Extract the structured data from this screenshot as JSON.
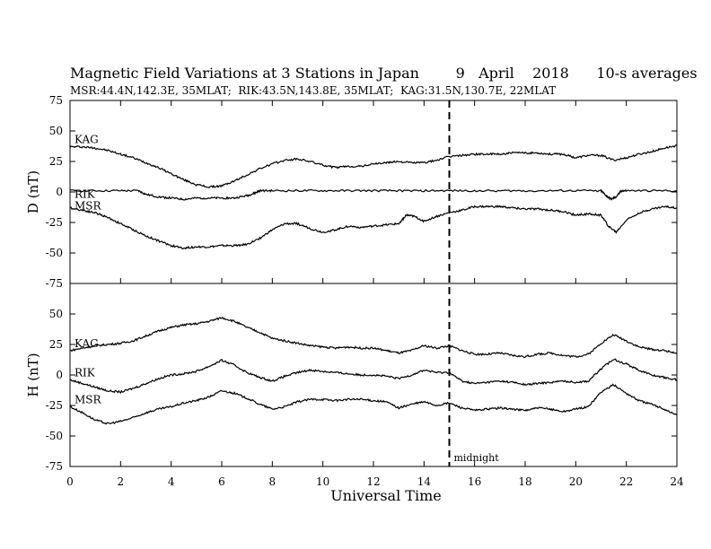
{
  "header": {
    "title": "Magnetic Field Variations at 3 Stations in Japan        9   April    2018      10-s averages",
    "subtitle": "MSR:44.4N,142.3E, 35MLAT;  RIK:43.5N,143.8E, 35MLAT;  KAG:31.5N,130.7E, 22MLAT"
  },
  "chart_data": [
    {
      "type": "line",
      "ylabel": "D (nT)",
      "xlabel": "",
      "xlim": [
        0,
        24
      ],
      "ylim": [
        -75,
        75
      ],
      "yticks": [
        75,
        50,
        25,
        0,
        -25,
        -50,
        -75
      ],
      "grid": false,
      "series": [
        {
          "name": "KAG",
          "x": [
            0,
            0.5,
            1,
            1.5,
            2,
            2.5,
            3,
            3.5,
            4,
            4.5,
            5,
            5.5,
            6,
            6.5,
            7,
            7.5,
            8,
            8.5,
            9,
            9.5,
            10,
            10.5,
            11,
            11.5,
            12,
            12.5,
            13,
            13.5,
            14,
            14.5,
            15,
            15.5,
            16,
            16.5,
            17,
            17.5,
            18,
            18.5,
            19,
            19.5,
            20,
            20.5,
            21,
            21.5,
            22,
            22.5,
            23,
            23.5,
            24
          ],
          "values": [
            37,
            37,
            36,
            34,
            31,
            28,
            24,
            20,
            15,
            10,
            6,
            4,
            5,
            9,
            14,
            19,
            23,
            26,
            27,
            25,
            22,
            20,
            21,
            21,
            23,
            24,
            25,
            24,
            24,
            26,
            29,
            30,
            31,
            31,
            31,
            32,
            32,
            32,
            31,
            31,
            28,
            30,
            30,
            26,
            28,
            31,
            33,
            36,
            38
          ]
        },
        {
          "name": "RIK",
          "x": [
            0,
            1,
            2,
            2.7,
            3,
            3.5,
            4,
            4.5,
            5,
            5.5,
            6,
            6.5,
            7,
            7.3,
            7.5,
            8,
            9,
            10,
            11,
            12,
            13,
            14,
            15,
            16,
            17,
            18,
            19,
            20,
            21,
            21.2,
            21.4,
            21.6,
            21.8,
            22,
            23,
            24
          ],
          "values": [
            1,
            1,
            1,
            1,
            -2,
            -4,
            -5,
            -6,
            -5,
            -5,
            -5,
            -5,
            -3,
            -1,
            1,
            1,
            1,
            1,
            1,
            1,
            1,
            1,
            1,
            1,
            1,
            1,
            1,
            1,
            1,
            -3,
            -6,
            -4,
            1,
            1,
            1,
            1
          ]
        },
        {
          "name": "MSR",
          "x": [
            0,
            0.5,
            1,
            1.5,
            2,
            2.5,
            3,
            3.5,
            4,
            4.5,
            5,
            5.5,
            6,
            6.5,
            7,
            7.5,
            8,
            8.5,
            9,
            9.5,
            10,
            10.5,
            11,
            11.5,
            12,
            12.5,
            13,
            13.3,
            13.6,
            14,
            14.5,
            15,
            15.5,
            16,
            16.5,
            17,
            17.5,
            18,
            18.5,
            19,
            19.5,
            20,
            20.5,
            21,
            21.3,
            21.6,
            22,
            22.5,
            23,
            23.5,
            24
          ],
          "values": [
            -13,
            -15,
            -17,
            -21,
            -26,
            -31,
            -36,
            -40,
            -44,
            -46,
            -45,
            -45,
            -44,
            -44,
            -43,
            -38,
            -31,
            -26,
            -26,
            -30,
            -33,
            -31,
            -28,
            -29,
            -28,
            -27,
            -26,
            -19,
            -20,
            -24,
            -20,
            -17,
            -15,
            -12,
            -12,
            -12,
            -13,
            -14,
            -14,
            -15,
            -16,
            -19,
            -18,
            -19,
            -28,
            -33,
            -23,
            -17,
            -14,
            -12,
            -13
          ]
        }
      ]
    },
    {
      "type": "line",
      "ylabel": "H (nT)",
      "xlabel": "Universal Time",
      "xlim": [
        0,
        24
      ],
      "ylim": [
        -75,
        75
      ],
      "xticks": [
        0,
        2,
        4,
        6,
        8,
        10,
        12,
        14,
        16,
        18,
        20,
        22,
        24
      ],
      "yticks": [
        50,
        25,
        0,
        -25,
        -50,
        -75
      ],
      "grid": false,
      "annotations": [
        {
          "text": "midnight",
          "x": 15
        }
      ],
      "series": [
        {
          "name": "KAG",
          "x": [
            0,
            0.5,
            1,
            1.5,
            2,
            2.5,
            3,
            3.5,
            4,
            4.5,
            5,
            5.5,
            6,
            6.5,
            7,
            7.5,
            8,
            8.5,
            9,
            9.5,
            10,
            10.5,
            11,
            11.5,
            12,
            12.5,
            13,
            13.5,
            14,
            14.5,
            15,
            15.5,
            16,
            16.5,
            17,
            17.5,
            18,
            18.5,
            19,
            19.5,
            20,
            20.5,
            21,
            21.5,
            22,
            22.5,
            23,
            23.5,
            24
          ],
          "values": [
            20,
            22,
            24,
            25,
            26,
            28,
            32,
            36,
            39,
            41,
            42,
            44,
            47,
            44,
            39,
            35,
            30,
            28,
            26,
            24,
            23,
            22,
            23,
            22,
            22,
            20,
            18,
            20,
            24,
            22,
            24,
            20,
            17,
            17,
            18,
            16,
            15,
            17,
            18,
            16,
            15,
            17,
            26,
            33,
            28,
            23,
            21,
            20,
            18
          ]
        },
        {
          "name": "RIK",
          "x": [
            0,
            0.5,
            1,
            1.5,
            2,
            2.5,
            3,
            3.5,
            4,
            4.5,
            5,
            5.5,
            6,
            6.5,
            7,
            7.5,
            8,
            8.5,
            9,
            9.5,
            10,
            10.5,
            11,
            11.5,
            12,
            12.5,
            13,
            13.5,
            14,
            14.5,
            15,
            15.5,
            16,
            16.5,
            17,
            17.5,
            18,
            18.5,
            19,
            19.5,
            20,
            20.5,
            21,
            21.5,
            22,
            22.5,
            23,
            23.5,
            24
          ],
          "values": [
            -4,
            -7,
            -10,
            -13,
            -14,
            -11,
            -7,
            -3,
            0,
            1,
            3,
            7,
            12,
            8,
            2,
            -2,
            -5,
            -1,
            2,
            4,
            3,
            2,
            1,
            0,
            0,
            -1,
            -3,
            0,
            4,
            2,
            2,
            -5,
            -7,
            -6,
            -5,
            -6,
            -8,
            -7,
            -6,
            -5,
            -6,
            -5,
            5,
            13,
            9,
            4,
            0,
            -2,
            -4
          ]
        },
        {
          "name": "MSR",
          "x": [
            0,
            0.5,
            1,
            1.5,
            2,
            2.5,
            3,
            3.5,
            4,
            4.5,
            5,
            5.5,
            6,
            6.5,
            7,
            7.5,
            8,
            8.5,
            9,
            9.5,
            10,
            10.5,
            11,
            11.5,
            12,
            12.5,
            13,
            13.5,
            14,
            14.5,
            15,
            15.5,
            16,
            16.5,
            17,
            17.5,
            18,
            18.5,
            19,
            19.5,
            20,
            20.5,
            21,
            21.5,
            22,
            22.5,
            23,
            23.5,
            24
          ],
          "values": [
            -26,
            -31,
            -37,
            -40,
            -38,
            -35,
            -31,
            -28,
            -26,
            -23,
            -21,
            -18,
            -13,
            -15,
            -19,
            -24,
            -28,
            -26,
            -22,
            -20,
            -20,
            -21,
            -20,
            -20,
            -21,
            -22,
            -27,
            -24,
            -22,
            -25,
            -23,
            -27,
            -29,
            -28,
            -27,
            -28,
            -29,
            -27,
            -28,
            -30,
            -28,
            -26,
            -14,
            -8,
            -15,
            -21,
            -24,
            -28,
            -33
          ]
        }
      ]
    }
  ]
}
